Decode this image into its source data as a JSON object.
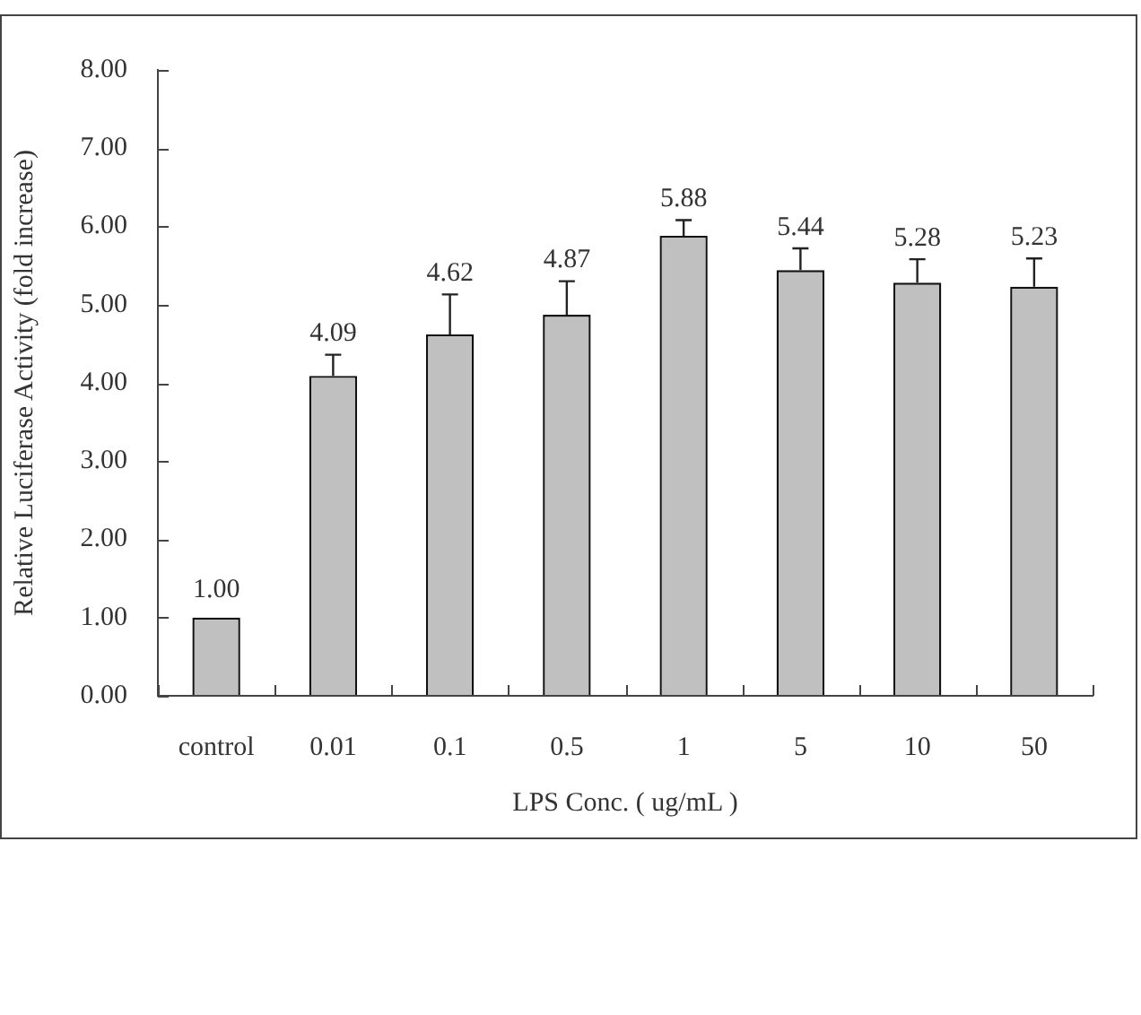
{
  "chart_data": {
    "type": "bar",
    "xlabel": "LPS Conc. ( ug/mL )",
    "ylabel": "Relative Luciferase Activity (fold increase)",
    "categories": [
      "control",
      "0.01",
      "0.1",
      "0.5",
      "1",
      "5",
      "10",
      "50"
    ],
    "values": [
      1.0,
      4.09,
      4.62,
      4.87,
      5.88,
      5.44,
      5.28,
      5.23
    ],
    "errors": [
      null,
      [
        4.09,
        4.36
      ],
      [
        4.62,
        5.13
      ],
      [
        4.87,
        5.3
      ],
      [
        5.88,
        6.08
      ],
      [
        5.44,
        5.72
      ],
      [
        5.28,
        5.58
      ],
      [
        5.23,
        5.59
      ]
    ],
    "value_labels": [
      "1.00",
      "4.09",
      "4.62",
      "4.87",
      "5.88",
      "5.44",
      "5.28",
      "5.23"
    ],
    "color": "#c0c0c0",
    "ylim": [
      0,
      8
    ],
    "yticks": [
      {
        "value": 0,
        "label": "0.00"
      },
      {
        "value": 1,
        "label": "1.00"
      },
      {
        "value": 2,
        "label": "2.00"
      },
      {
        "value": 3,
        "label": "3.00"
      },
      {
        "value": 4,
        "label": "4.00"
      },
      {
        "value": 5,
        "label": "5.00"
      },
      {
        "value": 6,
        "label": "6.00"
      },
      {
        "value": 7,
        "label": "7.00"
      },
      {
        "value": 8,
        "label": "8.00"
      }
    ],
    "grid": false,
    "legend": false
  }
}
